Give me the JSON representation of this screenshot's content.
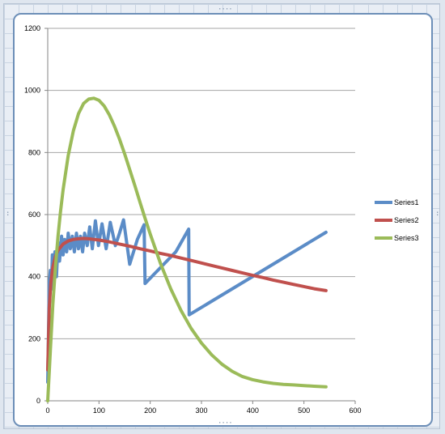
{
  "chart_data": {
    "type": "line",
    "title": "",
    "xlabel": "",
    "ylabel": "",
    "xlim": [
      0,
      600
    ],
    "ylim": [
      0,
      1200
    ],
    "x_ticks": [
      0,
      100,
      200,
      300,
      400,
      500,
      600
    ],
    "y_ticks": [
      0,
      200,
      400,
      600,
      800,
      1000,
      1200
    ],
    "grid": "horizontal",
    "legend": "right",
    "series": [
      {
        "name": "Series1",
        "color": "#5b8cc7",
        "x": [
          0,
          3,
          5,
          7,
          9,
          11,
          14,
          17,
          20,
          23,
          27,
          30,
          33,
          37,
          40,
          44,
          48,
          52,
          56,
          60,
          64,
          68,
          72,
          77,
          82,
          87,
          93,
          99,
          106,
          114,
          122,
          132,
          140,
          148,
          160,
          175,
          188,
          190,
          250,
          275,
          276,
          543
        ],
        "y": [
          60,
          380,
          420,
          360,
          470,
          420,
          480,
          400,
          510,
          450,
          530,
          470,
          520,
          480,
          540,
          490,
          530,
          480,
          540,
          490,
          530,
          480,
          540,
          500,
          560,
          490,
          580,
          500,
          570,
          490,
          575,
          500,
          540,
          583,
          440,
          520,
          567,
          378,
          480,
          553,
          277,
          543
        ]
      },
      {
        "name": "Series2",
        "color": "#c0504d",
        "x": [
          0,
          3,
          6,
          10,
          15,
          20,
          30,
          40,
          50,
          60,
          70,
          80,
          90,
          100,
          120,
          140,
          160,
          180,
          200,
          220,
          240,
          260,
          280,
          300,
          320,
          340,
          360,
          380,
          400,
          420,
          440,
          460,
          480,
          500,
          520,
          543
        ],
        "y": [
          100,
          300,
          380,
          430,
          465,
          485,
          505,
          515,
          520,
          522,
          523,
          522,
          520,
          518,
          512,
          505,
          498,
          490,
          483,
          475,
          468,
          460,
          452,
          444,
          436,
          428,
          420,
          412,
          404,
          397,
          389,
          382,
          375,
          368,
          361,
          355
        ]
      },
      {
        "name": "Series3",
        "color": "#9bbb59",
        "x": [
          0,
          5,
          10,
          15,
          20,
          25,
          30,
          40,
          50,
          60,
          70,
          80,
          90,
          100,
          110,
          120,
          130,
          140,
          150,
          160,
          170,
          180,
          190,
          200,
          220,
          240,
          260,
          280,
          300,
          320,
          340,
          360,
          380,
          400,
          420,
          440,
          460,
          480,
          500,
          520,
          543
        ],
        "y": [
          0,
          160,
          310,
          430,
          530,
          610,
          680,
          790,
          870,
          925,
          958,
          972,
          975,
          968,
          950,
          922,
          886,
          843,
          796,
          745,
          693,
          640,
          588,
          537,
          443,
          361,
          291,
          233,
          186,
          148,
          118,
          95,
          78,
          68,
          61,
          56,
          53,
          51,
          49,
          47,
          45
        ]
      }
    ]
  }
}
